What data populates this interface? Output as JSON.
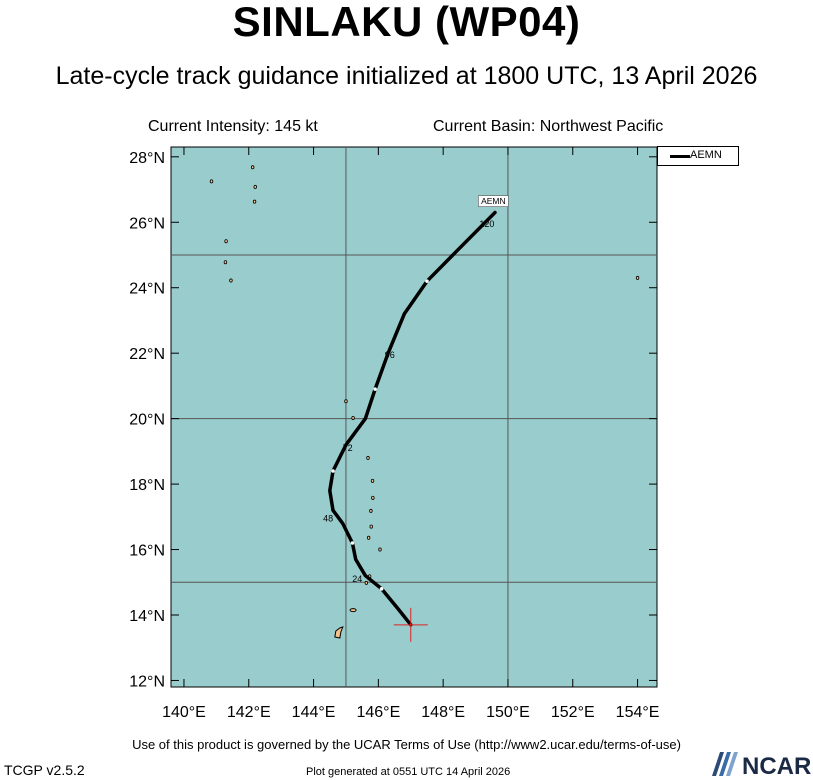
{
  "header": {
    "title": "SINLAKU (WP04)",
    "subtitle": "Late-cycle track guidance initialized at 1800 UTC, 13 April 2026"
  },
  "info": {
    "intensity": "Current Intensity: 145 kt",
    "basin": "Current Basin: Northwest Pacific"
  },
  "map": {
    "lon_range": [
      139.6,
      154.6
    ],
    "lat_range": [
      11.8,
      28.3
    ],
    "ocean_color": "#99cccc",
    "land_color": "#f5c08a",
    "grid_lines": {
      "lon": [
        145,
        150
      ],
      "lat": [
        15,
        20,
        25
      ]
    },
    "x_ticks": [
      {
        "value": 140,
        "label": "140°E"
      },
      {
        "value": 142,
        "label": "142°E"
      },
      {
        "value": 144,
        "label": "144°E"
      },
      {
        "value": 146,
        "label": "146°E"
      },
      {
        "value": 148,
        "label": "148°E"
      },
      {
        "value": 150,
        "label": "150°E"
      },
      {
        "value": 152,
        "label": "152°E"
      },
      {
        "value": 154,
        "label": "154°E"
      }
    ],
    "y_ticks": [
      {
        "value": 12,
        "label": "12°N"
      },
      {
        "value": 14,
        "label": "14°N"
      },
      {
        "value": 16,
        "label": "16°N"
      },
      {
        "value": 18,
        "label": "18°N"
      },
      {
        "value": 20,
        "label": "20°N"
      },
      {
        "value": 22,
        "label": "22°N"
      },
      {
        "value": 24,
        "label": "24°N"
      },
      {
        "value": 26,
        "label": "26°N"
      },
      {
        "value": 28,
        "label": "28°N"
      }
    ],
    "current_position": {
      "lon": 147.0,
      "lat": 13.7,
      "color": "#dd2222"
    },
    "track": {
      "name": "AEMN",
      "points": [
        [
          147.0,
          13.7
        ],
        [
          146.6,
          14.2
        ],
        [
          146.1,
          14.8
        ],
        [
          145.6,
          15.2
        ],
        [
          145.3,
          15.7
        ],
        [
          145.2,
          16.2
        ],
        [
          144.9,
          16.8
        ],
        [
          144.6,
          17.2
        ],
        [
          144.5,
          17.8
        ],
        [
          144.6,
          18.4
        ],
        [
          145.0,
          19.2
        ],
        [
          145.6,
          20.0
        ],
        [
          145.9,
          20.9
        ],
        [
          146.3,
          22.0
        ],
        [
          146.8,
          23.2
        ],
        [
          147.5,
          24.2
        ],
        [
          148.4,
          25.1
        ],
        [
          149.6,
          26.3
        ]
      ],
      "white_ticks": [
        [
          146.1,
          14.8
        ],
        [
          145.2,
          16.2
        ],
        [
          144.6,
          18.4
        ],
        [
          145.9,
          20.9
        ],
        [
          147.5,
          24.2
        ]
      ],
      "hour_labels": [
        {
          "text": "24",
          "lon": 145.35,
          "lat": 15.1
        },
        {
          "text": "48",
          "lon": 144.45,
          "lat": 16.95
        },
        {
          "text": "72",
          "lon": 145.05,
          "lat": 19.1
        },
        {
          "text": "96",
          "lon": 146.35,
          "lat": 21.95
        },
        {
          "text": "120",
          "lon": 149.35,
          "lat": 25.95
        }
      ],
      "end_label": {
        "text": "AEMN",
        "lon": 149.55,
        "lat": 26.6
      }
    },
    "islands": [
      [
        142.12,
        27.68
      ],
      [
        142.2,
        27.08
      ],
      [
        142.18,
        26.63
      ],
      [
        140.85,
        27.25
      ],
      [
        141.3,
        25.42
      ],
      [
        141.28,
        24.78
      ],
      [
        141.45,
        24.22
      ],
      [
        145.0,
        20.53
      ],
      [
        145.22,
        20.02
      ],
      [
        145.68,
        18.8
      ],
      [
        145.82,
        18.1
      ],
      [
        145.83,
        17.58
      ],
      [
        145.77,
        17.18
      ],
      [
        145.78,
        16.7
      ],
      [
        145.7,
        16.36
      ],
      [
        146.05,
        16.0
      ],
      [
        145.73,
        15.18
      ],
      [
        145.63,
        14.98
      ],
      [
        154.0,
        24.3
      ]
    ],
    "guam": {
      "lon": 144.78,
      "lat": 13.45
    },
    "rota": {
      "lon": 145.22,
      "lat": 14.15
    }
  },
  "legend": {
    "label": "AEMN"
  },
  "footer": {
    "terms": "Use of this product is governed by the UCAR Terms of Use (http://www2.ucar.edu/terms-of-use)",
    "version": "TCGP v2.5.2",
    "generated": "Plot generated at 0551 UTC   14 April 2026",
    "logo_text": "NCAR"
  }
}
